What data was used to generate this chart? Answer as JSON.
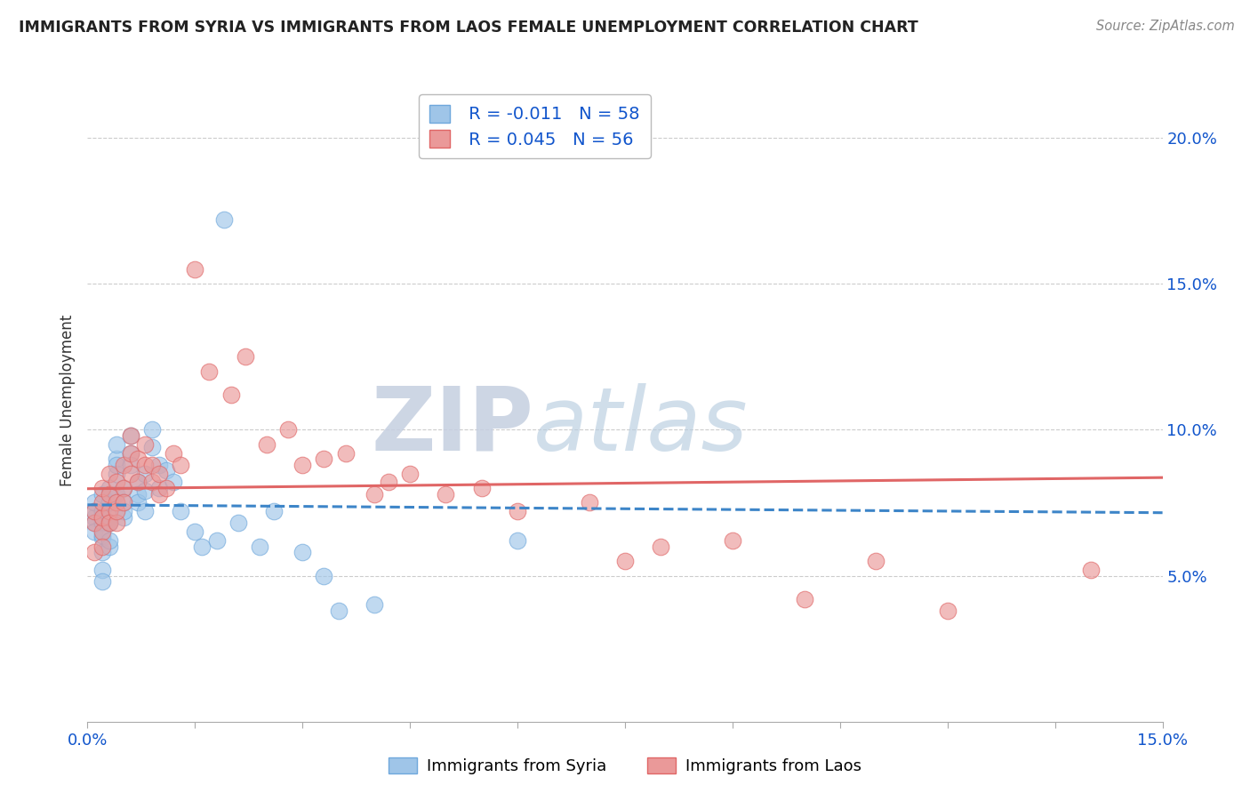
{
  "title": "IMMIGRANTS FROM SYRIA VS IMMIGRANTS FROM LAOS FEMALE UNEMPLOYMENT CORRELATION CHART",
  "source": "Source: ZipAtlas.com",
  "ylabel": "Female Unemployment",
  "xlim": [
    0.0,
    0.15
  ],
  "ylim": [
    0.0,
    0.22
  ],
  "xticks": [
    0.0,
    0.015,
    0.03,
    0.045,
    0.06,
    0.075,
    0.09,
    0.105,
    0.12,
    0.135,
    0.15
  ],
  "xticklabels_show": {
    "0.0": "0.0%",
    "0.15": "15.0%"
  },
  "yticks_right": [
    0.05,
    0.1,
    0.15,
    0.2
  ],
  "yticklabels_right": [
    "5.0%",
    "10.0%",
    "15.0%",
    "20.0%"
  ],
  "syria_R": -0.011,
  "syria_N": 58,
  "laos_R": 0.045,
  "laos_N": 56,
  "syria_color": "#9fc5e8",
  "laos_color": "#ea9999",
  "syria_line_color": "#3d85c8",
  "laos_line_color": "#e06666",
  "watermark_zip": "ZIP",
  "watermark_atlas": "atlas",
  "legend_label_syria": "Immigrants from Syria",
  "legend_label_laos": "Immigrants from Laos",
  "syria_x": [
    0.001,
    0.001,
    0.001,
    0.001,
    0.001,
    0.002,
    0.002,
    0.002,
    0.002,
    0.002,
    0.002,
    0.002,
    0.002,
    0.002,
    0.003,
    0.003,
    0.003,
    0.003,
    0.003,
    0.003,
    0.003,
    0.004,
    0.004,
    0.004,
    0.004,
    0.004,
    0.005,
    0.005,
    0.005,
    0.005,
    0.006,
    0.006,
    0.006,
    0.007,
    0.007,
    0.007,
    0.008,
    0.008,
    0.008,
    0.009,
    0.009,
    0.01,
    0.01,
    0.011,
    0.012,
    0.013,
    0.015,
    0.016,
    0.018,
    0.019,
    0.021,
    0.024,
    0.026,
    0.03,
    0.033,
    0.035,
    0.04,
    0.06
  ],
  "syria_y": [
    0.07,
    0.072,
    0.068,
    0.065,
    0.075,
    0.068,
    0.072,
    0.078,
    0.063,
    0.058,
    0.064,
    0.07,
    0.052,
    0.048,
    0.07,
    0.075,
    0.08,
    0.068,
    0.06,
    0.062,
    0.068,
    0.09,
    0.085,
    0.078,
    0.088,
    0.095,
    0.08,
    0.075,
    0.07,
    0.072,
    0.092,
    0.098,
    0.088,
    0.082,
    0.078,
    0.075,
    0.085,
    0.079,
    0.072,
    0.1,
    0.094,
    0.088,
    0.08,
    0.086,
    0.082,
    0.072,
    0.065,
    0.06,
    0.062,
    0.172,
    0.068,
    0.06,
    0.072,
    0.058,
    0.05,
    0.038,
    0.04,
    0.062
  ],
  "laos_x": [
    0.001,
    0.001,
    0.001,
    0.002,
    0.002,
    0.002,
    0.002,
    0.002,
    0.003,
    0.003,
    0.003,
    0.003,
    0.004,
    0.004,
    0.004,
    0.004,
    0.005,
    0.005,
    0.005,
    0.006,
    0.006,
    0.006,
    0.007,
    0.007,
    0.008,
    0.008,
    0.009,
    0.009,
    0.01,
    0.01,
    0.011,
    0.012,
    0.013,
    0.015,
    0.017,
    0.02,
    0.022,
    0.025,
    0.028,
    0.03,
    0.033,
    0.036,
    0.04,
    0.042,
    0.045,
    0.05,
    0.055,
    0.06,
    0.07,
    0.075,
    0.08,
    0.09,
    0.1,
    0.11,
    0.12,
    0.14
  ],
  "laos_y": [
    0.068,
    0.072,
    0.058,
    0.065,
    0.07,
    0.075,
    0.06,
    0.08,
    0.072,
    0.068,
    0.078,
    0.085,
    0.075,
    0.082,
    0.068,
    0.072,
    0.08,
    0.088,
    0.075,
    0.092,
    0.098,
    0.085,
    0.09,
    0.082,
    0.088,
    0.095,
    0.082,
    0.088,
    0.078,
    0.085,
    0.08,
    0.092,
    0.088,
    0.155,
    0.12,
    0.112,
    0.125,
    0.095,
    0.1,
    0.088,
    0.09,
    0.092,
    0.078,
    0.082,
    0.085,
    0.078,
    0.08,
    0.072,
    0.075,
    0.055,
    0.06,
    0.062,
    0.042,
    0.055,
    0.038,
    0.052
  ]
}
